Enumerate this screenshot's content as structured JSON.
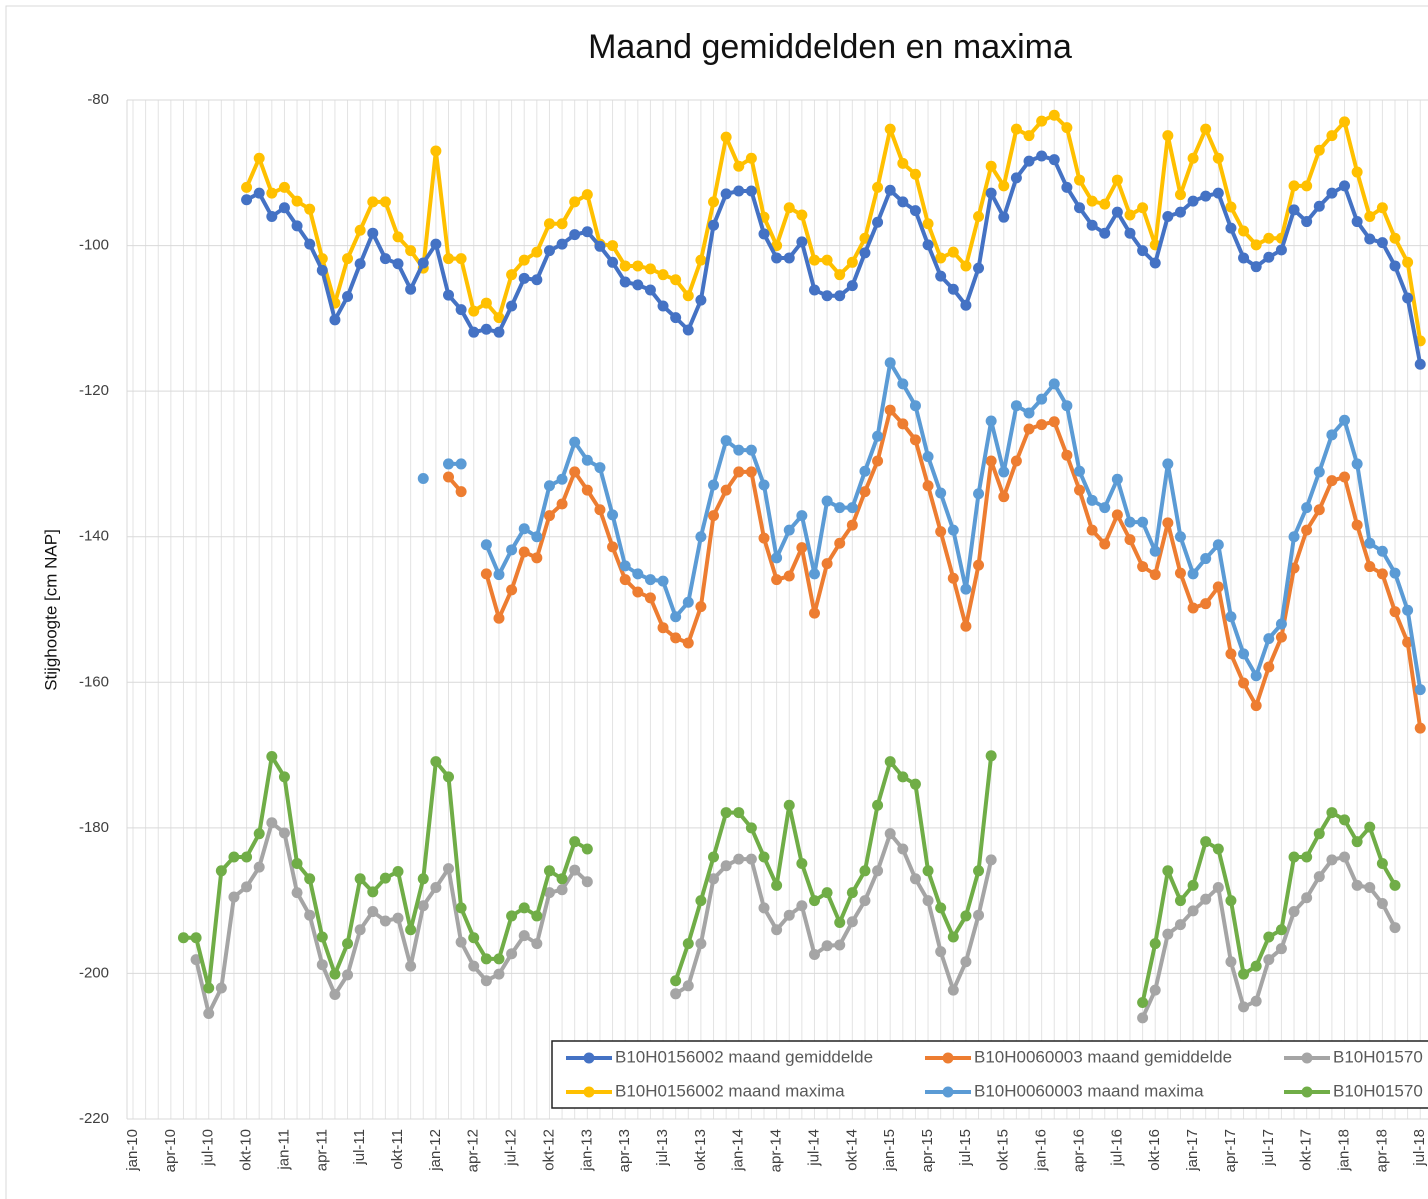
{
  "chart_data": {
    "type": "line",
    "title": "Maand gemiddelden en maxima",
    "y_label": "Stijghoogte [cm NAP]",
    "ylim": [
      -220,
      -80
    ],
    "yticks": [
      -220,
      -200,
      -180,
      -160,
      -140,
      -120,
      -100,
      -80
    ],
    "grid": true,
    "legend": "bottom",
    "categories": [
      "jan-10",
      null,
      null,
      "apr-10",
      null,
      null,
      "jul-10",
      null,
      null,
      "okt-10",
      null,
      null,
      "jan-11",
      null,
      null,
      "apr-11",
      null,
      null,
      "jul-11",
      null,
      null,
      "okt-11",
      null,
      null,
      "jan-12",
      null,
      null,
      "apr-12",
      null,
      null,
      "jul-12",
      null,
      null,
      "okt-12",
      null,
      null,
      "jan-13",
      null,
      null,
      "apr-13",
      null,
      null,
      "jul-13",
      null,
      null,
      "okt-13",
      null,
      null,
      "jan-14",
      null,
      null,
      "apr-14",
      null,
      null,
      "jul-14",
      null,
      null,
      "okt-14",
      null,
      null,
      "jan-15",
      null,
      null,
      "apr-15",
      null,
      null,
      "jul-15",
      null,
      null,
      "okt-15",
      null,
      null,
      "jan-16",
      null,
      null,
      "apr-16",
      null,
      null,
      "jul-16",
      null,
      null,
      "okt-16",
      null,
      null,
      "jan-17",
      null,
      null,
      "apr-17",
      null,
      null,
      "jul-17",
      null,
      null,
      "okt-17",
      null,
      null,
      "jan-18",
      null,
      null,
      "apr-18",
      null,
      null,
      "jul-18"
    ],
    "series": [
      {
        "name": "B10H0156002 maand gemiddelde",
        "color": "#4472c4",
        "values": [
          null,
          null,
          null,
          null,
          null,
          null,
          null,
          null,
          null,
          -93.7,
          -92.8,
          -96,
          -94.8,
          -97.3,
          -99.8,
          -103.4,
          -110.2,
          -107,
          -102.5,
          -98.3,
          -101.8,
          -102.5,
          -106,
          -102.4,
          -99.8,
          -106.8,
          -108.8,
          -111.9,
          -111.5,
          -111.9,
          -108.3,
          -104.5,
          -104.7,
          -100.7,
          -99.8,
          -98.5,
          -98.1,
          -100.1,
          -102.3,
          -105,
          -105.4,
          -106.1,
          -108.3,
          -109.9,
          -111.6,
          -107.5,
          -97.2,
          -92.9,
          -92.5,
          -92.5,
          -98.4,
          -101.7,
          -101.7,
          -99.5,
          -106.1,
          -106.9,
          -106.9,
          -105.5,
          -101,
          -96.8,
          -92.4,
          -94,
          -95.2,
          -99.9,
          -104.2,
          -106,
          -108.2,
          -103.1,
          -92.8,
          -96.1,
          -90.7,
          -88.4,
          -87.7,
          -88.2,
          -92,
          -94.8,
          -97.2,
          -98.3,
          -95.4,
          -98.3,
          -100.7,
          -102.4,
          -96,
          -95.4,
          -93.9,
          -93.2,
          -92.8,
          -97.6,
          -101.7,
          -102.9,
          -101.6,
          -100.6,
          -95.1,
          -96.7,
          -94.6,
          -92.8,
          -91.8,
          -96.7,
          -99.1,
          -99.6,
          -102.8,
          -107.2,
          -116.3
        ]
      },
      {
        "name": "B10H0060003 maand gemiddelde",
        "color": "#ed7d31",
        "values": [
          null,
          null,
          null,
          null,
          null,
          null,
          null,
          null,
          null,
          null,
          null,
          null,
          null,
          null,
          null,
          null,
          null,
          null,
          null,
          null,
          null,
          null,
          null,
          null,
          null,
          -131.8,
          -133.8,
          null,
          -145.1,
          -151.2,
          -147.3,
          -142.1,
          -142.9,
          -137.1,
          -135.5,
          -131.1,
          -133.6,
          -136.3,
          -141.4,
          -145.9,
          -147.6,
          -148.4,
          -152.5,
          -153.9,
          -154.6,
          -149.6,
          -137.1,
          -133.6,
          -131.1,
          -131.1,
          -140.2,
          -145.9,
          -145.4,
          -141.5,
          -150.5,
          -143.7,
          -140.9,
          -138.4,
          -133.8,
          -129.6,
          -122.6,
          -124.5,
          -126.7,
          -133,
          -139.3,
          -145.7,
          -152.3,
          -143.9,
          -129.6,
          -134.5,
          -129.6,
          -125.2,
          -124.6,
          -124.2,
          -128.8,
          -133.6,
          -139.1,
          -141,
          -137,
          -140.4,
          -144.1,
          -145.2,
          -138.1,
          -145,
          -149.8,
          -149.2,
          -146.9,
          -156.1,
          -160.1,
          -163.2,
          -157.9,
          -153.8,
          -144.3,
          -139.1,
          -136.3,
          -132.3,
          -131.8,
          -138.4,
          -144.1,
          -145.1,
          -150.3,
          -154.5,
          -166.3
        ]
      },
      {
        "name": "B10H01570",
        "color": "#a5a5a5",
        "values": [
          null,
          null,
          null,
          null,
          null,
          -198.1,
          -205.5,
          -202,
          -189.5,
          -188.1,
          -185.4,
          -179.3,
          -180.7,
          -188.9,
          -192,
          -198.8,
          -202.9,
          -200.2,
          -194,
          -191.5,
          -192.8,
          -192.4,
          -199,
          -190.7,
          -188.2,
          -185.6,
          -195.7,
          -199,
          -201,
          -200.1,
          -197.3,
          -194.8,
          -195.9,
          -188.9,
          -188.5,
          -185.8,
          -187.4,
          null,
          null,
          null,
          null,
          null,
          null,
          -202.8,
          -201.7,
          -195.9,
          -187,
          -185.2,
          -184.3,
          -184.3,
          -191,
          -194,
          -192,
          -190.7,
          -197.4,
          -196.2,
          -196.1,
          -192.9,
          -190,
          -185.9,
          -180.8,
          -182.9,
          -187,
          -190,
          -197,
          -202.3,
          -198.4,
          -192,
          -184.4,
          null,
          null,
          null,
          null,
          null,
          null,
          null,
          null,
          null,
          null,
          null,
          -206.1,
          -202.3,
          -194.6,
          -193.3,
          -191.4,
          -189.8,
          -188.2,
          -198.4,
          -204.6,
          -203.8,
          -198.1,
          -196.6,
          -191.5,
          -189.6,
          -186.7,
          -184.4,
          -184,
          -187.9,
          -188.2,
          -190.4,
          -193.7,
          null,
          null
        ]
      },
      {
        "name": "B10H0156002 maand maxima",
        "color": "#ffc000",
        "values": [
          null,
          null,
          null,
          null,
          null,
          null,
          null,
          null,
          null,
          -92,
          -88,
          -92.8,
          -92,
          -93.9,
          -95,
          -101.8,
          -107.9,
          -101.8,
          -97.9,
          -94,
          -94,
          -98.8,
          -100.7,
          -103.1,
          -87,
          -101.8,
          -101.8,
          -109,
          -107.9,
          -109.9,
          -104,
          -102,
          -100.9,
          -97,
          -97,
          -94,
          -93,
          -99.8,
          -100,
          -102.8,
          -102.8,
          -103.2,
          -104,
          -104.7,
          -106.9,
          -102,
          -94,
          -85.1,
          -89.1,
          -88,
          -96.1,
          -100,
          -94.8,
          -95.8,
          -102,
          -102,
          -104,
          -102.3,
          -99,
          -92,
          -84,
          -88.7,
          -90.2,
          -97,
          -101.7,
          -100.9,
          -102.8,
          -96,
          -89.1,
          -91.8,
          -84,
          -84.9,
          -82.9,
          -82.1,
          -83.8,
          -91,
          -93.9,
          -94.3,
          -91,
          -95.8,
          -94.8,
          -99.9,
          -84.9,
          -93,
          -88,
          -84,
          -88,
          -94.7,
          -98,
          -99.9,
          -99,
          -99,
          -91.8,
          -91.8,
          -86.9,
          -84.9,
          -83,
          -89.9,
          -96,
          -94.8,
          -99,
          -102.3,
          -113.1
        ]
      },
      {
        "name": "B10H0060003 maand maxima",
        "color": "#5b9bd5",
        "values": [
          null,
          null,
          null,
          null,
          null,
          null,
          null,
          null,
          null,
          null,
          null,
          null,
          null,
          null,
          null,
          null,
          null,
          null,
          null,
          null,
          null,
          null,
          null,
          -132,
          null,
          -130,
          -130,
          null,
          -141.1,
          -145.2,
          -141.8,
          -138.9,
          -140,
          -133,
          -132.1,
          -127,
          -129.5,
          -130.5,
          -137,
          -144,
          -145.1,
          -145.9,
          -146.1,
          -151,
          -149,
          -140,
          -132.9,
          -126.8,
          -128.1,
          -128.1,
          -132.9,
          -142.9,
          -139.1,
          -137.1,
          -145.1,
          -135.1,
          -136,
          -136,
          -131,
          -126.2,
          -116.1,
          -119,
          -122,
          -129,
          -134,
          -139.1,
          -147.2,
          -134.1,
          -124.1,
          -131.1,
          -122,
          -123,
          -121.1,
          -119,
          -122,
          -131,
          -135,
          -136,
          -132.1,
          -138,
          -138,
          -142,
          -130,
          -140,
          -145.1,
          -143,
          -141.1,
          -151,
          -156.1,
          -159.1,
          -154,
          -152,
          -140,
          -136,
          -131.1,
          -126,
          -124,
          -130,
          -140.9,
          -142,
          -145,
          -150.1,
          -161
        ]
      },
      {
        "name": "B10H01570",
        "color": "#70ad47",
        "values": [
          null,
          null,
          null,
          null,
          -195.1,
          -195.1,
          -202,
          -185.9,
          -184,
          -184,
          -180.8,
          -170.2,
          -173,
          -184.9,
          -187,
          -195,
          -200.1,
          -195.9,
          -187,
          -188.8,
          -186.9,
          -186,
          -194,
          -187,
          -170.9,
          -173,
          -191,
          -195.1,
          -198,
          -198,
          -192.1,
          -191,
          -192.1,
          -185.9,
          -187,
          -181.9,
          -182.9,
          null,
          null,
          null,
          null,
          null,
          null,
          -201,
          -195.9,
          -190,
          -184,
          -177.9,
          -177.9,
          -180,
          -184,
          -187.9,
          -176.9,
          -184.9,
          -190,
          -188.9,
          -193,
          -188.9,
          -185.9,
          -176.9,
          -170.9,
          -173,
          -174,
          -185.9,
          -191,
          -195,
          -192.1,
          -185.9,
          -170.1,
          null,
          null,
          null,
          null,
          null,
          null,
          null,
          null,
          null,
          null,
          null,
          -204,
          -195.9,
          -185.9,
          -190,
          -187.9,
          -181.9,
          -182.9,
          -190,
          -200.1,
          -199,
          -195,
          -194,
          -184,
          -184,
          -180.8,
          -177.9,
          -178.9,
          -181.9,
          -179.9,
          -184.9,
          -187.9,
          null,
          null
        ]
      }
    ]
  }
}
